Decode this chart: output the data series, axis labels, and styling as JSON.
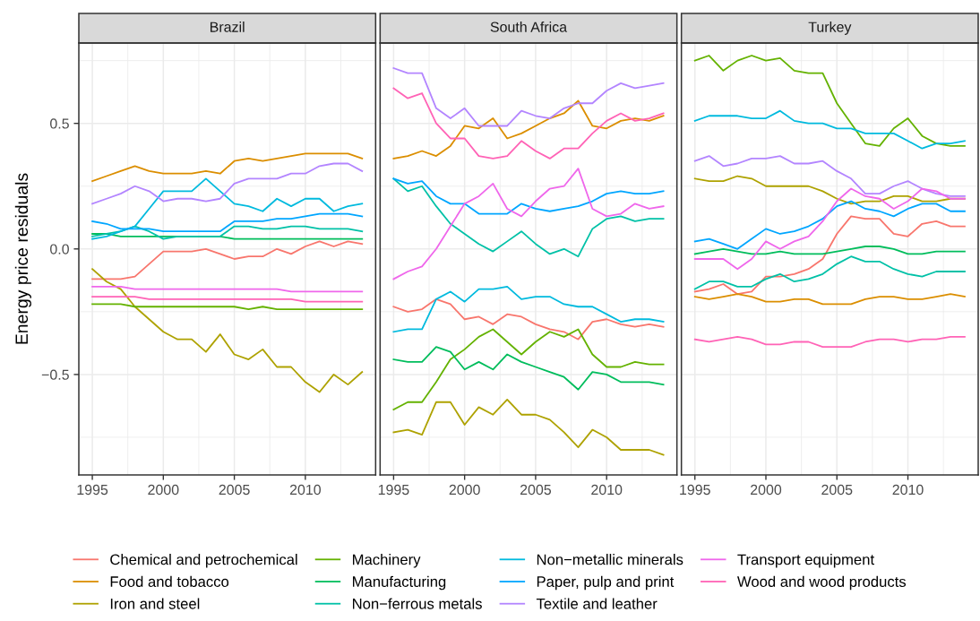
{
  "chart_data": [
    {
      "type": "line",
      "title": "Brazil",
      "ylabel": "Energy price residuals",
      "legend": "bottom",
      "grid": true,
      "x": [
        1995,
        1996,
        1997,
        1998,
        1999,
        2000,
        2001,
        2002,
        2003,
        2004,
        2005,
        2006,
        2007,
        2008,
        2009,
        2010,
        2011,
        2012,
        2013,
        2014
      ],
      "xlim": [
        1994.05,
        2014.95
      ],
      "ylim": [
        -0.9,
        0.82
      ],
      "xticks": [
        1995,
        2000,
        2005,
        2010
      ],
      "yticks": [
        {
          "value": -0.5,
          "label": "−0.5"
        },
        {
          "value": 0,
          "label": "0.0"
        },
        {
          "value": 0.5,
          "label": "0.5"
        }
      ],
      "series": [
        {
          "name": "Chemical and petrochemical",
          "color": "#f8766d",
          "values": [
            -0.12,
            -0.12,
            -0.12,
            -0.11,
            -0.06,
            -0.01,
            -0.01,
            -0.01,
            0.0,
            -0.02,
            -0.04,
            -0.03,
            -0.03,
            0.0,
            -0.02,
            0.01,
            0.03,
            0.01,
            0.03,
            0.02
          ]
        },
        {
          "name": "Food and tobacco",
          "color": "#db8e00",
          "values": [
            0.27,
            0.29,
            0.31,
            0.33,
            0.31,
            0.3,
            0.3,
            0.3,
            0.31,
            0.3,
            0.35,
            0.36,
            0.35,
            0.36,
            0.37,
            0.38,
            0.38,
            0.38,
            0.38,
            0.36
          ]
        },
        {
          "name": "Iron and steel",
          "color": "#aea200",
          "values": [
            -0.08,
            -0.13,
            -0.16,
            -0.23,
            -0.28,
            -0.33,
            -0.36,
            -0.36,
            -0.41,
            -0.34,
            -0.42,
            -0.44,
            -0.4,
            -0.47,
            -0.47,
            -0.53,
            -0.57,
            -0.5,
            -0.54,
            -0.49
          ]
        },
        {
          "name": "Machinery",
          "color": "#64b200",
          "values": [
            -0.22,
            -0.22,
            -0.22,
            -0.23,
            -0.23,
            -0.23,
            -0.23,
            -0.23,
            -0.23,
            -0.23,
            -0.23,
            -0.24,
            -0.23,
            -0.24,
            -0.24,
            -0.24,
            -0.24,
            -0.24,
            -0.24,
            -0.24
          ]
        },
        {
          "name": "Manufacturing",
          "color": "#00bd5c",
          "values": [
            0.06,
            0.06,
            0.05,
            0.05,
            0.05,
            0.05,
            0.05,
            0.05,
            0.05,
            0.05,
            0.04,
            0.04,
            0.04,
            0.04,
            0.04,
            0.04,
            0.04,
            0.04,
            0.04,
            0.04
          ]
        },
        {
          "name": "Non−ferrous metals",
          "color": "#00c1a7",
          "values": [
            0.05,
            0.06,
            0.07,
            0.09,
            0.07,
            0.04,
            0.05,
            0.05,
            0.05,
            0.05,
            0.09,
            0.09,
            0.08,
            0.08,
            0.09,
            0.09,
            0.08,
            0.08,
            0.08,
            0.07
          ]
        },
        {
          "name": "Non−metallic minerals",
          "color": "#00bade",
          "values": [
            0.04,
            0.05,
            0.07,
            0.09,
            0.16,
            0.23,
            0.23,
            0.23,
            0.28,
            0.23,
            0.18,
            0.17,
            0.15,
            0.2,
            0.17,
            0.2,
            0.2,
            0.15,
            0.17,
            0.18
          ]
        },
        {
          "name": "Paper, pulp and print",
          "color": "#00a6ff",
          "values": [
            0.11,
            0.1,
            0.08,
            0.08,
            0.08,
            0.07,
            0.07,
            0.07,
            0.07,
            0.07,
            0.11,
            0.11,
            0.11,
            0.12,
            0.12,
            0.13,
            0.14,
            0.14,
            0.14,
            0.13
          ]
        },
        {
          "name": "Textile and leather",
          "color": "#b385ff",
          "values": [
            0.18,
            0.2,
            0.22,
            0.25,
            0.23,
            0.19,
            0.2,
            0.2,
            0.19,
            0.2,
            0.26,
            0.28,
            0.28,
            0.28,
            0.3,
            0.3,
            0.33,
            0.34,
            0.34,
            0.31
          ]
        },
        {
          "name": "Transport equipment",
          "color": "#ef67eb",
          "values": [
            -0.15,
            -0.15,
            -0.15,
            -0.16,
            -0.16,
            -0.16,
            -0.16,
            -0.16,
            -0.16,
            -0.16,
            -0.16,
            -0.16,
            -0.16,
            -0.16,
            -0.17,
            -0.17,
            -0.17,
            -0.17,
            -0.17,
            -0.17
          ]
        },
        {
          "name": "Wood and wood products",
          "color": "#ff63b6",
          "values": [
            -0.19,
            -0.19,
            -0.19,
            -0.19,
            -0.2,
            -0.2,
            -0.2,
            -0.2,
            -0.2,
            -0.2,
            -0.2,
            -0.2,
            -0.2,
            -0.2,
            -0.2,
            -0.21,
            -0.21,
            -0.21,
            -0.21,
            -0.21
          ]
        }
      ]
    },
    {
      "type": "line",
      "title": "South Africa",
      "grid": true,
      "tick_labels": "x",
      "x": [
        1995,
        1996,
        1997,
        1998,
        1999,
        2000,
        2001,
        2002,
        2003,
        2004,
        2005,
        2006,
        2007,
        2008,
        2009,
        2010,
        2011,
        2012,
        2013,
        2014
      ],
      "xlim": [
        1994.05,
        2014.95
      ],
      "ylim": [
        -0.9,
        0.82
      ],
      "xticks": [
        1995,
        2000,
        2005,
        2010
      ],
      "yticks": [
        -0.5,
        0,
        0.5
      ],
      "series": [
        {
          "color": "#f8766d",
          "values": [
            -0.23,
            -0.25,
            -0.24,
            -0.2,
            -0.22,
            -0.28,
            -0.27,
            -0.3,
            -0.26,
            -0.27,
            -0.3,
            -0.32,
            -0.33,
            -0.36,
            -0.29,
            -0.28,
            -0.3,
            -0.31,
            -0.3,
            -0.31
          ]
        },
        {
          "color": "#db8e00",
          "values": [
            0.36,
            0.37,
            0.39,
            0.37,
            0.41,
            0.49,
            0.48,
            0.52,
            0.44,
            0.46,
            0.49,
            0.52,
            0.54,
            0.59,
            0.49,
            0.48,
            0.51,
            0.52,
            0.51,
            0.53
          ]
        },
        {
          "color": "#aea200",
          "values": [
            -0.73,
            -0.72,
            -0.74,
            -0.61,
            -0.61,
            -0.7,
            -0.63,
            -0.66,
            -0.6,
            -0.66,
            -0.66,
            -0.68,
            -0.73,
            -0.79,
            -0.72,
            -0.75,
            -0.8,
            -0.8,
            -0.8,
            -0.82
          ]
        },
        {
          "color": "#64b200",
          "values": [
            -0.64,
            -0.61,
            -0.61,
            -0.53,
            -0.44,
            -0.4,
            -0.35,
            -0.32,
            -0.37,
            -0.42,
            -0.37,
            -0.33,
            -0.35,
            -0.32,
            -0.42,
            -0.47,
            -0.47,
            -0.45,
            -0.46,
            -0.46
          ]
        },
        {
          "color": "#00bd5c",
          "values": [
            -0.44,
            -0.45,
            -0.45,
            -0.39,
            -0.41,
            -0.48,
            -0.45,
            -0.48,
            -0.42,
            -0.45,
            -0.47,
            -0.49,
            -0.51,
            -0.56,
            -0.49,
            -0.5,
            -0.53,
            -0.53,
            -0.53,
            -0.54
          ]
        },
        {
          "color": "#00c1a7",
          "values": [
            0.28,
            0.23,
            0.25,
            0.17,
            0.1,
            0.06,
            0.02,
            -0.01,
            0.03,
            0.07,
            0.02,
            -0.02,
            0.0,
            -0.03,
            0.08,
            0.12,
            0.13,
            0.11,
            0.12,
            0.12
          ]
        },
        {
          "color": "#00bade",
          "values": [
            -0.33,
            -0.32,
            -0.32,
            -0.2,
            -0.17,
            -0.21,
            -0.16,
            -0.16,
            -0.15,
            -0.2,
            -0.19,
            -0.19,
            -0.22,
            -0.23,
            -0.23,
            -0.26,
            -0.29,
            -0.28,
            -0.28,
            -0.29
          ]
        },
        {
          "color": "#00a6ff",
          "values": [
            0.28,
            0.26,
            0.27,
            0.21,
            0.18,
            0.18,
            0.14,
            0.14,
            0.14,
            0.18,
            0.16,
            0.15,
            0.16,
            0.17,
            0.19,
            0.22,
            0.23,
            0.22,
            0.22,
            0.23
          ]
        },
        {
          "color": "#b385ff",
          "values": [
            0.72,
            0.7,
            0.7,
            0.56,
            0.52,
            0.56,
            0.49,
            0.49,
            0.49,
            0.55,
            0.53,
            0.52,
            0.56,
            0.58,
            0.58,
            0.63,
            0.66,
            0.64,
            0.65,
            0.66
          ]
        },
        {
          "color": "#ef67eb",
          "values": [
            -0.12,
            -0.09,
            -0.07,
            0.0,
            0.09,
            0.18,
            0.21,
            0.26,
            0.16,
            0.13,
            0.19,
            0.24,
            0.25,
            0.32,
            0.16,
            0.13,
            0.14,
            0.18,
            0.16,
            0.17
          ]
        },
        {
          "color": "#ff63b6",
          "values": [
            0.64,
            0.6,
            0.62,
            0.5,
            0.44,
            0.44,
            0.37,
            0.36,
            0.37,
            0.43,
            0.39,
            0.36,
            0.4,
            0.4,
            0.46,
            0.51,
            0.54,
            0.51,
            0.52,
            0.54
          ]
        }
      ]
    },
    {
      "type": "line",
      "title": "Turkey",
      "grid": true,
      "tick_labels": "x",
      "x": [
        1995,
        1996,
        1997,
        1998,
        1999,
        2000,
        2001,
        2002,
        2003,
        2004,
        2005,
        2006,
        2007,
        2008,
        2009,
        2010,
        2011,
        2012,
        2013,
        2014
      ],
      "xlim": [
        1994.05,
        2014.95
      ],
      "ylim": [
        -0.9,
        0.82
      ],
      "xticks": [
        1995,
        2000,
        2005,
        2010
      ],
      "yticks": [
        -0.5,
        0,
        0.5
      ],
      "series": [
        {
          "color": "#f8766d",
          "values": [
            -0.17,
            -0.16,
            -0.14,
            -0.18,
            -0.17,
            -0.11,
            -0.11,
            -0.1,
            -0.08,
            -0.04,
            0.06,
            0.13,
            0.12,
            0.12,
            0.06,
            0.05,
            0.1,
            0.11,
            0.09,
            0.09
          ]
        },
        {
          "color": "#db8e00",
          "values": [
            -0.19,
            -0.2,
            -0.19,
            -0.18,
            -0.19,
            -0.21,
            -0.21,
            -0.2,
            -0.2,
            -0.22,
            -0.22,
            -0.22,
            -0.2,
            -0.19,
            -0.19,
            -0.2,
            -0.2,
            -0.19,
            -0.18,
            -0.19
          ]
        },
        {
          "color": "#aea200",
          "values": [
            0.28,
            0.27,
            0.27,
            0.29,
            0.28,
            0.25,
            0.25,
            0.25,
            0.25,
            0.23,
            0.2,
            0.18,
            0.19,
            0.19,
            0.21,
            0.21,
            0.19,
            0.19,
            0.2,
            0.2
          ]
        },
        {
          "color": "#64b200",
          "values": [
            0.75,
            0.77,
            0.71,
            0.75,
            0.77,
            0.75,
            0.76,
            0.71,
            0.7,
            0.7,
            0.58,
            0.5,
            0.42,
            0.41,
            0.48,
            0.52,
            0.45,
            0.42,
            0.41,
            0.41
          ]
        },
        {
          "color": "#00bd5c",
          "values": [
            -0.02,
            -0.01,
            0.0,
            -0.01,
            -0.02,
            -0.02,
            -0.01,
            -0.02,
            -0.02,
            -0.02,
            -0.01,
            0.0,
            0.01,
            0.01,
            0.0,
            -0.02,
            -0.02,
            -0.01,
            -0.01,
            -0.01
          ]
        },
        {
          "color": "#00c1a7",
          "values": [
            -0.16,
            -0.13,
            -0.13,
            -0.15,
            -0.15,
            -0.12,
            -0.1,
            -0.13,
            -0.12,
            -0.1,
            -0.06,
            -0.03,
            -0.05,
            -0.05,
            -0.08,
            -0.1,
            -0.11,
            -0.09,
            -0.09,
            -0.09
          ]
        },
        {
          "color": "#00bade",
          "values": [
            0.51,
            0.53,
            0.53,
            0.53,
            0.52,
            0.52,
            0.55,
            0.51,
            0.5,
            0.5,
            0.48,
            0.48,
            0.46,
            0.46,
            0.46,
            0.43,
            0.4,
            0.42,
            0.42,
            0.43
          ]
        },
        {
          "color": "#00a6ff",
          "values": [
            0.03,
            0.04,
            0.02,
            0.0,
            0.04,
            0.08,
            0.06,
            0.07,
            0.09,
            0.12,
            0.17,
            0.19,
            0.16,
            0.15,
            0.13,
            0.16,
            0.18,
            0.18,
            0.15,
            0.15
          ]
        },
        {
          "color": "#b385ff",
          "values": [
            0.35,
            0.37,
            0.33,
            0.34,
            0.36,
            0.36,
            0.37,
            0.34,
            0.34,
            0.35,
            0.31,
            0.28,
            0.22,
            0.22,
            0.25,
            0.27,
            0.24,
            0.22,
            0.21,
            0.21
          ]
        },
        {
          "color": "#ef67eb",
          "values": [
            -0.04,
            -0.04,
            -0.04,
            -0.08,
            -0.04,
            0.03,
            0.0,
            0.03,
            0.05,
            0.11,
            0.19,
            0.24,
            0.21,
            0.2,
            0.16,
            0.19,
            0.24,
            0.23,
            0.2,
            0.2
          ]
        },
        {
          "color": "#ff63b6",
          "values": [
            -0.36,
            -0.37,
            -0.36,
            -0.35,
            -0.36,
            -0.38,
            -0.38,
            -0.37,
            -0.37,
            -0.39,
            -0.39,
            -0.39,
            -0.37,
            -0.36,
            -0.36,
            -0.37,
            -0.36,
            -0.36,
            -0.35,
            -0.35
          ]
        }
      ]
    }
  ]
}
